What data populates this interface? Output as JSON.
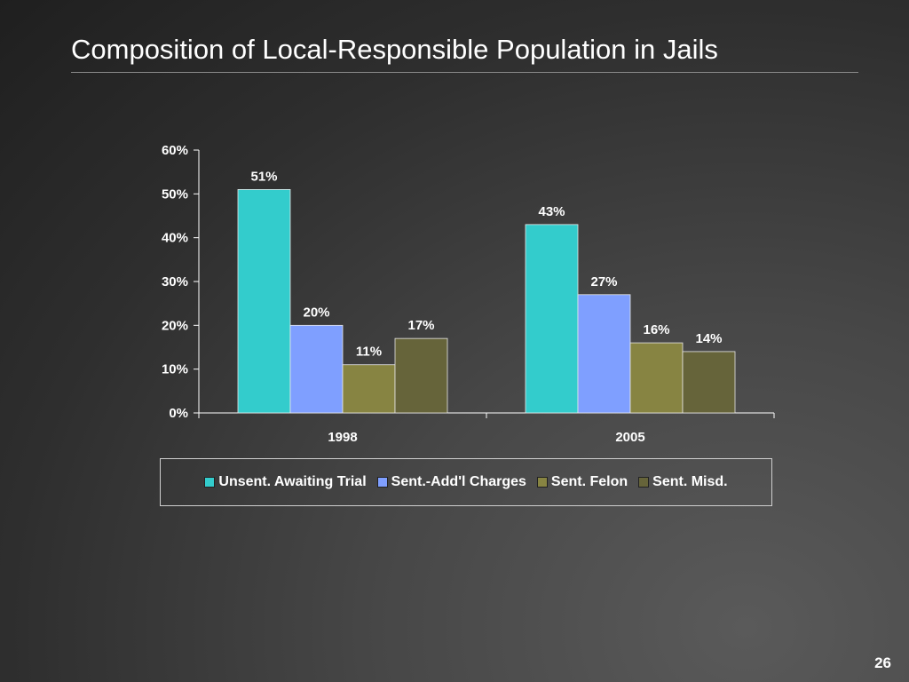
{
  "slide": {
    "title": "Composition of Local-Responsible Population in Jails",
    "page_number": "26"
  },
  "colors": {
    "background": "#3a3a3a",
    "text": "#ffffff",
    "axis": "#ffffff"
  },
  "chart_data": {
    "type": "bar",
    "title": "",
    "xlabel": "",
    "ylabel": "",
    "categories": [
      "1998",
      "2005"
    ],
    "ylim": [
      0,
      60
    ],
    "yticks": [
      "0%",
      "10%",
      "20%",
      "30%",
      "40%",
      "50%",
      "60%"
    ],
    "grid": false,
    "legend_position": "bottom",
    "series": [
      {
        "name": "Unsent. Awaiting Trial",
        "color": "#33cccc",
        "values": [
          51,
          43
        ],
        "labels": [
          "51%",
          "43%"
        ]
      },
      {
        "name": "Sent.-Add'l Charges",
        "color": "#7f9fff",
        "values": [
          20,
          27
        ],
        "labels": [
          "20%",
          "27%"
        ]
      },
      {
        "name": "Sent. Felon",
        "color": "#878442",
        "values": [
          11,
          16
        ],
        "labels": [
          "11%",
          "16%"
        ]
      },
      {
        "name": "Sent. Misd.",
        "color": "#66643a",
        "values": [
          17,
          14
        ],
        "labels": [
          "17%",
          "14%"
        ]
      }
    ]
  }
}
